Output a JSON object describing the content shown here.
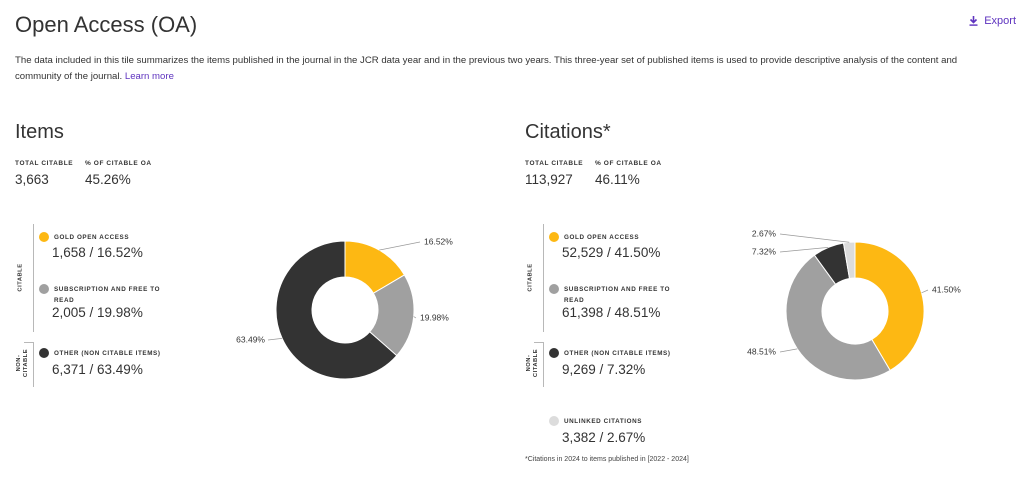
{
  "page": {
    "title": "Open Access (OA)",
    "export_label": "Export",
    "description": "The data included in this tile summarizes the items published in the journal in the JCR data year and in the previous two years. This three-year set of published items is used to provide descriptive analysis of the content and community of the journal.",
    "learn_more": "Learn more",
    "footnote": "*Citations in 2024 to items published in [2022 - 2024]"
  },
  "colors": {
    "gold": "#FDB813",
    "subscription": "#A0A0A0",
    "other": "#333333",
    "unlinked": "#DCDCDC",
    "accent": "#5E33BF"
  },
  "items": {
    "title": "Items",
    "total_label": "TOTAL CITABLE",
    "total_value": "3,663",
    "oa_label": "% OF CITABLE OA",
    "oa_value": "45.26%",
    "citable_group_label": "CITABLE",
    "noncitable_group_label": "NON-\nCITABLE",
    "legend": [
      {
        "label": "GOLD OPEN ACCESS",
        "value": "1,658 / 16.52%"
      },
      {
        "label": "SUBSCRIPTION AND FREE TO READ",
        "value": "2,005 / 19.98%"
      },
      {
        "label": "OTHER (NON CITABLE ITEMS)",
        "value": "6,371 / 63.49%"
      }
    ]
  },
  "citations": {
    "title": "Citations*",
    "total_label": "TOTAL CITABLE",
    "total_value": "113,927",
    "oa_label": "% OF CITABLE OA",
    "oa_value": "46.11%",
    "citable_group_label": "CITABLE",
    "noncitable_group_label": "NON-\nCITABLE",
    "legend": [
      {
        "label": "GOLD OPEN ACCESS",
        "value": "52,529 / 41.50%"
      },
      {
        "label": "SUBSCRIPTION AND FREE TO READ",
        "value": "61,398 / 48.51%"
      },
      {
        "label": "OTHER (NON CITABLE ITEMS)",
        "value": "9,269 / 7.32%"
      },
      {
        "label": "UNLINKED CITATIONS",
        "value": "3,382 / 2.67%"
      }
    ]
  },
  "chart_data": [
    {
      "type": "pie",
      "title": "Items",
      "categories": [
        "Gold Open Access",
        "Subscription and Free to Read",
        "Other (Non Citable Items)"
      ],
      "values": [
        16.52,
        19.98,
        63.49
      ],
      "labels": [
        "16.52%",
        "19.98%",
        "63.49%"
      ],
      "colors": [
        "#FDB813",
        "#A0A0A0",
        "#333333"
      ],
      "donut": true
    },
    {
      "type": "pie",
      "title": "Citations*",
      "categories": [
        "Gold Open Access",
        "Subscription and Free to Read",
        "Other (Non Citable Items)",
        "Unlinked Citations"
      ],
      "values": [
        41.5,
        48.51,
        7.32,
        2.67
      ],
      "labels": [
        "41.50%",
        "48.51%",
        "7.32%",
        "2.67%"
      ],
      "colors": [
        "#FDB813",
        "#A0A0A0",
        "#333333",
        "#DCDCDC"
      ],
      "donut": true
    }
  ]
}
